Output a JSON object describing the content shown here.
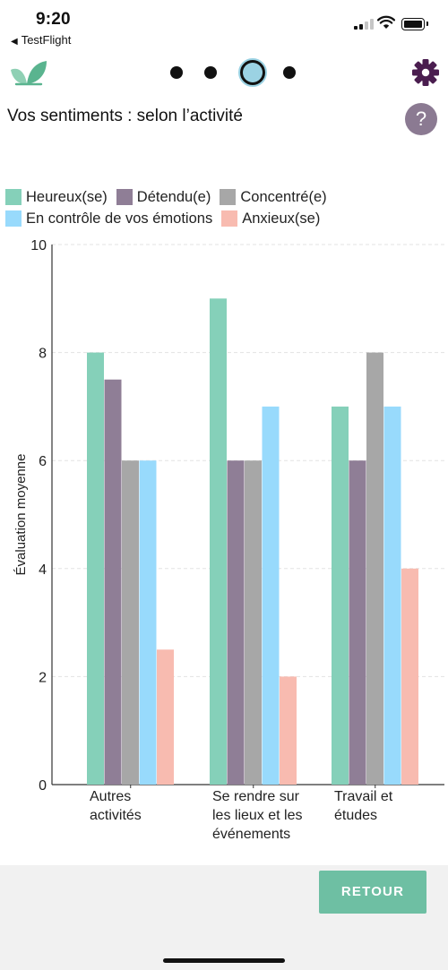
{
  "status_bar": {
    "time": "9:20",
    "back_app": "TestFlight"
  },
  "header": {
    "pager_total": 4,
    "pager_active": 3
  },
  "page": {
    "title": "Vos sentiments : selon l’activité",
    "help_label": "?"
  },
  "colors": {
    "accent": "#6ebfa3",
    "heureux": "#85d0b9",
    "detendu": "#8f7e96",
    "concentre": "#a7a7a7",
    "controle": "#98dafc",
    "anxieux": "#f8bbb0"
  },
  "legend": {
    "row1": [
      "Heureux(se)",
      "Détendu(e)",
      "Concentré(e)"
    ],
    "row2": [
      "En contrôle de vos émotions",
      "Anxieux(se)"
    ]
  },
  "chart_data": {
    "type": "bar",
    "ylabel": "Évaluation moyenne",
    "ylim": [
      0,
      10
    ],
    "yticks": [
      0,
      2,
      4,
      6,
      8,
      10
    ],
    "grid": true,
    "legend_position": "top",
    "categories": [
      [
        "Autres",
        "activités"
      ],
      [
        "Se rendre sur",
        "les lieux et les",
        "événements"
      ],
      [
        "Travail et",
        "études"
      ]
    ],
    "series": [
      {
        "name": "Heureux(se)",
        "color": "#85d0b9",
        "values": [
          8,
          9,
          7
        ]
      },
      {
        "name": "Détendu(e)",
        "color": "#8f7e96",
        "values": [
          7.5,
          6,
          6
        ]
      },
      {
        "name": "Concentré(e)",
        "color": "#a7a7a7",
        "values": [
          6,
          6,
          8
        ]
      },
      {
        "name": "En contrôle de vos émotions",
        "color": "#98dafc",
        "values": [
          6,
          7,
          7
        ]
      },
      {
        "name": "Anxieux(se)",
        "color": "#f8bbb0",
        "values": [
          2.5,
          2,
          4
        ]
      }
    ]
  },
  "footer": {
    "retour_label": "RETOUR"
  }
}
